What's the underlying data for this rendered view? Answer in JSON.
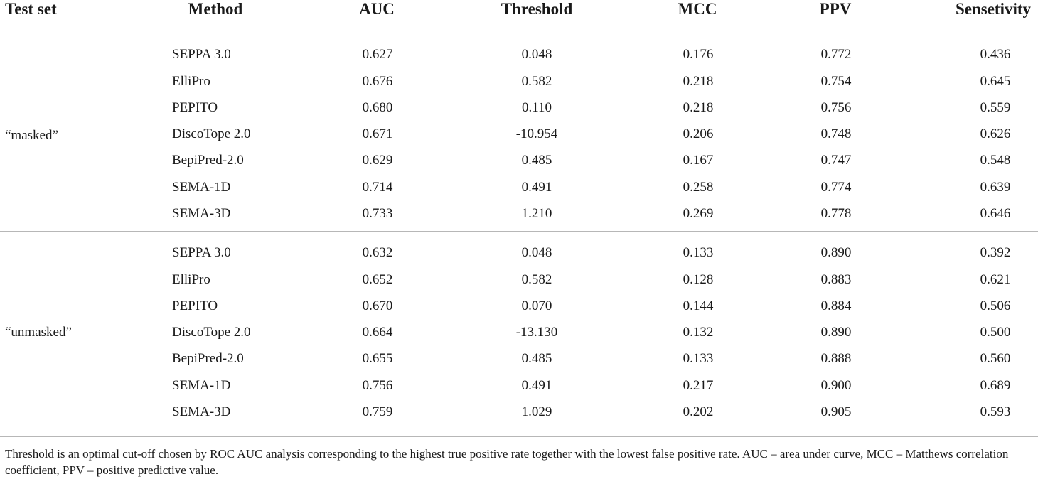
{
  "table": {
    "headers": {
      "test_set": "Test set",
      "method": "Method",
      "auc": "AUC",
      "threshold": "Threshold",
      "mcc": "MCC",
      "ppv": "PPV",
      "sensitivity": "Sensetivity"
    },
    "groups": [
      {
        "test_set": "“masked”",
        "rows": [
          {
            "method": "SEPPA 3.0",
            "auc": "0.627",
            "threshold": "0.048",
            "mcc": "0.176",
            "ppv": "0.772",
            "sensitivity": "0.436"
          },
          {
            "method": "ElliPro",
            "auc": "0.676",
            "threshold": "0.582",
            "mcc": "0.218",
            "ppv": "0.754",
            "sensitivity": "0.645"
          },
          {
            "method": "PEPITO",
            "auc": "0.680",
            "threshold": "0.110",
            "mcc": "0.218",
            "ppv": "0.756",
            "sensitivity": "0.559"
          },
          {
            "method": "DiscoTope 2.0",
            "auc": "0.671",
            "threshold": "-10.954",
            "mcc": "0.206",
            "ppv": "0.748",
            "sensitivity": "0.626"
          },
          {
            "method": "BepiPred-2.0",
            "auc": "0.629",
            "threshold": "0.485",
            "mcc": "0.167",
            "ppv": "0.747",
            "sensitivity": "0.548"
          },
          {
            "method": "SEMA-1D",
            "auc": "0.714",
            "threshold": "0.491",
            "mcc": "0.258",
            "ppv": "0.774",
            "sensitivity": "0.639"
          },
          {
            "method": "SEMA-3D",
            "auc": "0.733",
            "threshold": "1.210",
            "mcc": "0.269",
            "ppv": "0.778",
            "sensitivity": "0.646"
          }
        ]
      },
      {
        "test_set": "“unmasked”",
        "rows": [
          {
            "method": "SEPPA 3.0",
            "auc": "0.632",
            "threshold": "0.048",
            "mcc": "0.133",
            "ppv": "0.890",
            "sensitivity": "0.392"
          },
          {
            "method": "ElliPro",
            "auc": "0.652",
            "threshold": "0.582",
            "mcc": "0.128",
            "ppv": "0.883",
            "sensitivity": "0.621"
          },
          {
            "method": "PEPITO",
            "auc": "0.670",
            "threshold": "0.070",
            "mcc": "0.144",
            "ppv": "0.884",
            "sensitivity": "0.506"
          },
          {
            "method": "DiscoTope 2.0",
            "auc": "0.664",
            "threshold": "-13.130",
            "mcc": "0.132",
            "ppv": "0.890",
            "sensitivity": "0.500"
          },
          {
            "method": "BepiPred-2.0",
            "auc": "0.655",
            "threshold": "0.485",
            "mcc": "0.133",
            "ppv": "0.888",
            "sensitivity": "0.560"
          },
          {
            "method": "SEMA-1D",
            "auc": "0.756",
            "threshold": "0.491",
            "mcc": "0.217",
            "ppv": "0.900",
            "sensitivity": "0.689"
          },
          {
            "method": "SEMA-3D",
            "auc": "0.759",
            "threshold": "1.029",
            "mcc": "0.202",
            "ppv": "0.905",
            "sensitivity": "0.593"
          }
        ]
      }
    ],
    "footnote": "Threshold is an optimal cut-off chosen by ROC AUC analysis corresponding to the highest true positive rate together with the lowest false positive rate. AUC – area under curve, MCC – Matthews correlation coefficient, PPV – positive predictive value."
  }
}
